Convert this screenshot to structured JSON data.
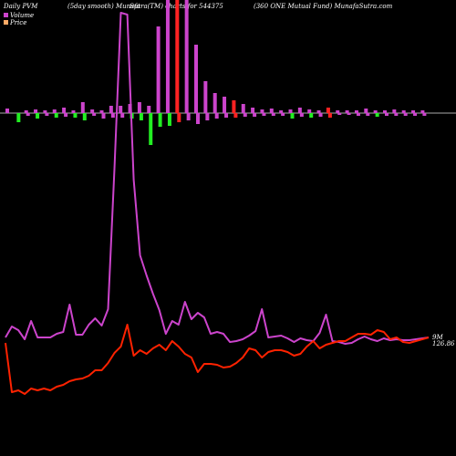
{
  "header": {
    "left": "Daily PVM",
    "col2": "(5day smooth) Munafa",
    "col3": "Sutra(TM) charts for 544375",
    "col4": "(360 ONE Mutual Fund) MunafaSutra.com"
  },
  "legend": [
    {
      "label": "Volume",
      "color": "#cc44cc"
    },
    {
      "label": "Price",
      "color": "#ffaa66"
    }
  ],
  "chart_data": {
    "type": "line",
    "title": "Daily PVM (5day smooth) MunafaSutra(TM) charts for 544375 (360 ONE Mutual Fund) MunafaSutra.com",
    "colors": {
      "volume_line": "#cc44cc",
      "price_line": "#ff2200",
      "bar_up": "#cc44cc",
      "bar_down": "#22ee22",
      "bar_red": "#ff2222",
      "zero_line": "#aaaaaa"
    },
    "series_labels": {
      "volume_end": "9M",
      "price_end": "126.86"
    },
    "volume_line": [
      370,
      358,
      362,
      372,
      352,
      370,
      370,
      370,
      366,
      364,
      334,
      367,
      367,
      356,
      349,
      357,
      339,
      185,
      14,
      16,
      197,
      280,
      302,
      322,
      340,
      366,
      352,
      356,
      331,
      350,
      343,
      348,
      366,
      364,
      366,
      375,
      374,
      372,
      368,
      363,
      339,
      370,
      369,
      368,
      371,
      375,
      371,
      373,
      374,
      365,
      345,
      374,
      375,
      377,
      376,
      372,
      369,
      372,
      374,
      371,
      373,
      372,
      373,
      373,
      372,
      371,
      370
    ],
    "price_line": [
      376,
      430,
      428,
      432,
      426,
      428,
      426,
      428,
      424,
      422,
      418,
      416,
      415,
      412,
      406,
      406,
      398,
      387,
      380,
      356,
      390,
      384,
      388,
      382,
      378,
      384,
      374,
      380,
      388,
      392,
      408,
      399,
      399,
      400,
      403,
      402,
      398,
      392,
      382,
      384,
      392,
      386,
      384,
      384,
      386,
      390,
      388,
      380,
      374,
      382,
      378,
      376,
      374,
      374,
      370,
      366,
      366,
      367,
      362,
      364,
      372,
      370,
      375,
      376,
      374,
      372,
      370
    ],
    "volume_bars": [
      {
        "up": 5,
        "down": 0,
        "kind": "mixed"
      },
      {
        "up": 0,
        "down": 10,
        "kind": "down"
      },
      {
        "up": 3,
        "down": 3,
        "kind": "mixed"
      },
      {
        "up": 4,
        "down": 6,
        "kind": "down"
      },
      {
        "up": 3,
        "down": 3,
        "kind": "mixed"
      },
      {
        "up": 4,
        "down": 5,
        "kind": "down"
      },
      {
        "up": 6,
        "down": 4,
        "kind": "mixed"
      },
      {
        "up": 3,
        "down": 5,
        "kind": "down"
      },
      {
        "up": 12,
        "down": 8,
        "kind": "down"
      },
      {
        "up": 4,
        "down": 3,
        "kind": "mixed"
      },
      {
        "up": 3,
        "down": 6,
        "kind": "mixed"
      },
      {
        "up": 8,
        "down": 5,
        "kind": "mixed"
      },
      {
        "up": 8,
        "down": 5,
        "kind": "mixed"
      },
      {
        "up": 10,
        "down": 6,
        "kind": "down"
      },
      {
        "up": 12,
        "down": 8,
        "kind": "down"
      },
      {
        "up": 8,
        "down": 35,
        "kind": "down"
      },
      {
        "up": 95,
        "down": 15,
        "kind": "down"
      },
      {
        "up": 130,
        "down": 14,
        "kind": "down"
      },
      {
        "up": 150,
        "down": 10,
        "kind": "red"
      },
      {
        "up": 160,
        "down": 8,
        "kind": "mixed"
      },
      {
        "up": 75,
        "down": 12,
        "kind": "mixed"
      },
      {
        "up": 35,
        "down": 8,
        "kind": "mixed"
      },
      {
        "up": 22,
        "down": 6,
        "kind": "mixed"
      },
      {
        "up": 18,
        "down": 5,
        "kind": "mixed"
      },
      {
        "up": 14,
        "down": 5,
        "kind": "red"
      },
      {
        "up": 10,
        "down": 4,
        "kind": "mixed"
      },
      {
        "up": 6,
        "down": 4,
        "kind": "mixed"
      },
      {
        "up": 4,
        "down": 3,
        "kind": "mixed"
      },
      {
        "up": 5,
        "down": 3,
        "kind": "mixed"
      },
      {
        "up": 3,
        "down": 3,
        "kind": "mixed"
      },
      {
        "up": 4,
        "down": 6,
        "kind": "down"
      },
      {
        "up": 6,
        "down": 4,
        "kind": "mixed"
      },
      {
        "up": 4,
        "down": 5,
        "kind": "down"
      },
      {
        "up": 3,
        "down": 4,
        "kind": "mixed"
      },
      {
        "up": 6,
        "down": 5,
        "kind": "red"
      },
      {
        "up": 3,
        "down": 2,
        "kind": "mixed"
      },
      {
        "up": 3,
        "down": 2,
        "kind": "mixed"
      },
      {
        "up": 3,
        "down": 3,
        "kind": "mixed"
      },
      {
        "up": 5,
        "down": 3,
        "kind": "mixed"
      },
      {
        "up": 3,
        "down": 4,
        "kind": "down"
      },
      {
        "up": 3,
        "down": 3,
        "kind": "mixed"
      },
      {
        "up": 4,
        "down": 3,
        "kind": "mixed"
      },
      {
        "up": 3,
        "down": 3,
        "kind": "mixed"
      },
      {
        "up": 3,
        "down": 3,
        "kind": "mixed"
      },
      {
        "up": 3,
        "down": 3,
        "kind": "mixed"
      }
    ]
  }
}
